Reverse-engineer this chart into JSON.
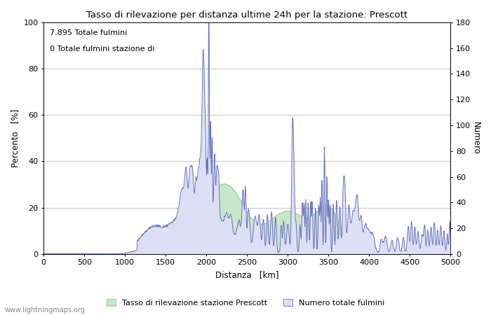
{
  "title": "Tasso di rilevazione per distanza ultime 24h per la stazione: Prescott",
  "xlabel": "Distanza   [km]",
  "ylabel_left": "Percento   [%]",
  "ylabel_right": "Numero",
  "annotation_line1": "7.895 Totale fulmini",
  "annotation_line2": "0 Totale fulmini stazione di",
  "legend_green": "Tasso di rilevazione stazione Prescott",
  "legend_blue": "Numero totale fulmini",
  "watermark": "www.lightningmaps.org",
  "xlim": [
    0,
    5000
  ],
  "ylim_left": [
    0,
    100
  ],
  "ylim_right": [
    0,
    180
  ],
  "xticks": [
    0,
    500,
    1000,
    1500,
    2000,
    2500,
    3000,
    3500,
    4000,
    4500,
    5000
  ],
  "yticks_left": [
    0,
    20,
    40,
    60,
    80,
    100
  ],
  "yticks_right": [
    0,
    20,
    40,
    60,
    80,
    100,
    120,
    140,
    160,
    180
  ],
  "fill_green_color": "#c8e6c9",
  "fill_blue_color": "#dde0f5",
  "line_color": "#6670c0",
  "green_line_color": "#90c890",
  "bg_color": "#ffffff",
  "grid_color": "#bbbbbb",
  "figsize": [
    7.0,
    4.5
  ],
  "dpi": 100
}
